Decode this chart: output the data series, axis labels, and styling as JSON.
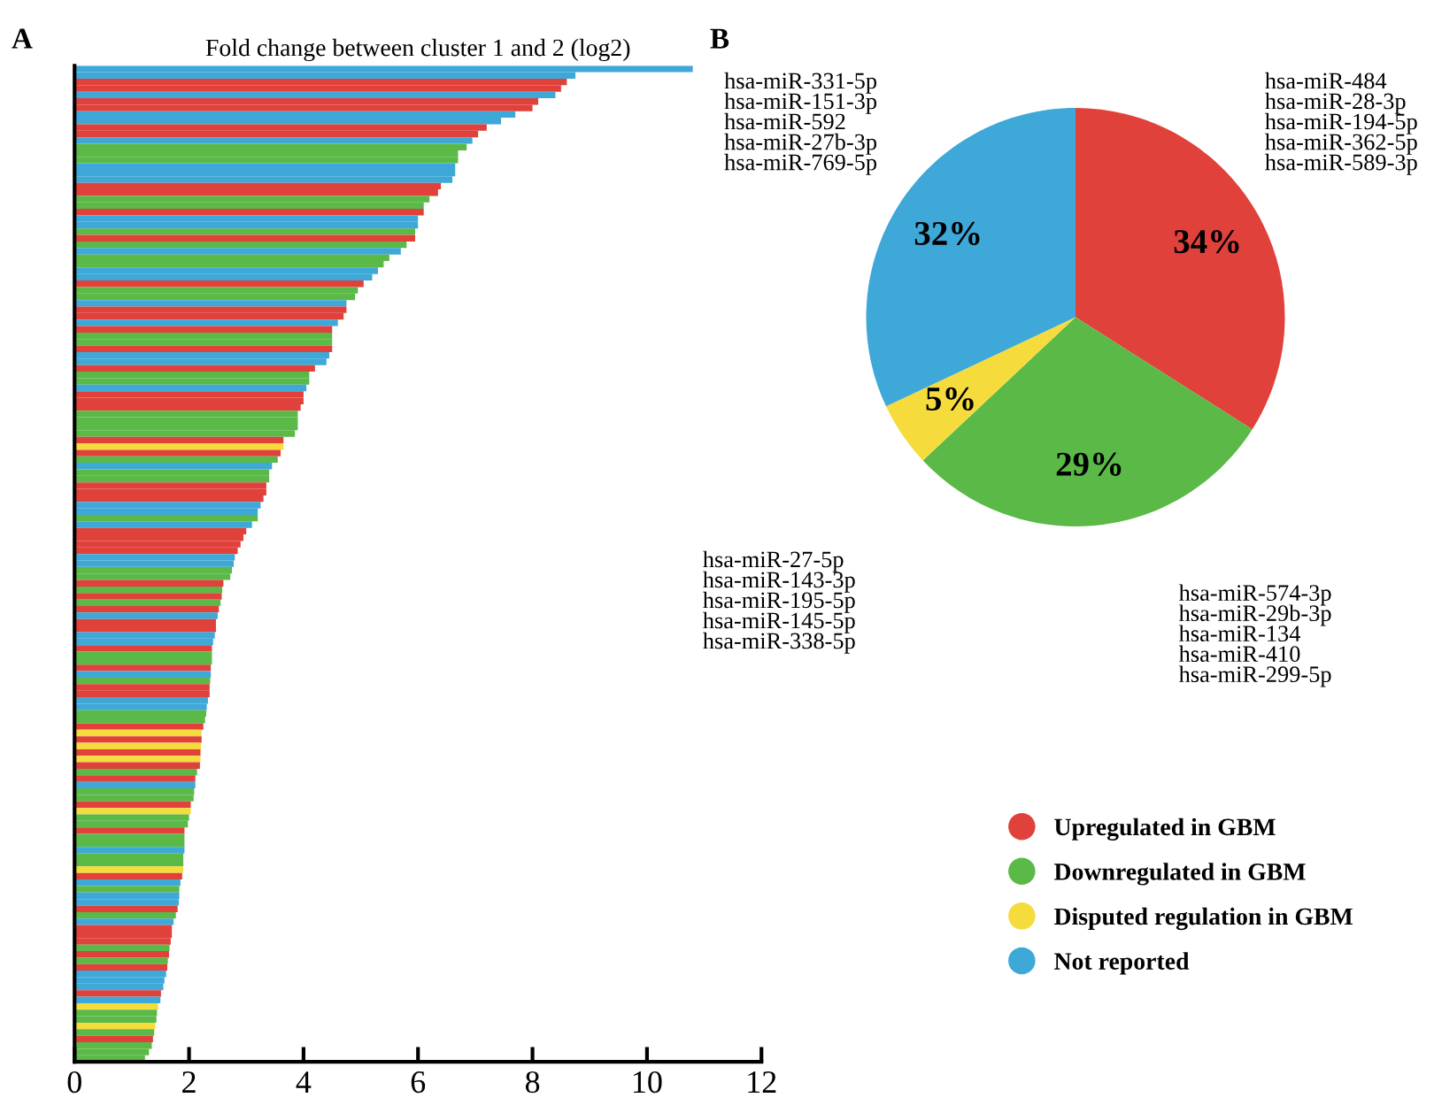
{
  "chart_data": [
    {
      "type": "bar",
      "orientation": "horizontal",
      "title": "Fold change between cluster 1 and 2 (log2)",
      "annotations": [
        "A"
      ],
      "xlim": [
        0,
        12
      ],
      "xticks": [
        0,
        2,
        4,
        6,
        8,
        10,
        12
      ],
      "categories": [
        null,
        null,
        null,
        null,
        null,
        null,
        null,
        null,
        null,
        null,
        null,
        null,
        null,
        null,
        null,
        null,
        null,
        null,
        null,
        null,
        null,
        null,
        null,
        null,
        null,
        null,
        null,
        null,
        null,
        null,
        null,
        null,
        null,
        null,
        null,
        null,
        null,
        null,
        null,
        null,
        null,
        null,
        null,
        null,
        null,
        null,
        null,
        null,
        null,
        null,
        null,
        null,
        null,
        null,
        null,
        null,
        null,
        null,
        null,
        null,
        null,
        null,
        null,
        null,
        null,
        null,
        null,
        null,
        null,
        null,
        null,
        null,
        null,
        null,
        null,
        null,
        null,
        null,
        null,
        null,
        null,
        null,
        null,
        null,
        null,
        null,
        null,
        null,
        null,
        null,
        null,
        null,
        null,
        null,
        null,
        null,
        null,
        null,
        null,
        null,
        null,
        null,
        null,
        null,
        null,
        null,
        null,
        null,
        null,
        null,
        null,
        null,
        null,
        null,
        null,
        null,
        null,
        null,
        null,
        null,
        null,
        null,
        null,
        null,
        null,
        null,
        null,
        null,
        null,
        null,
        null,
        null,
        null,
        null,
        null,
        null,
        null,
        null,
        null,
        null,
        null,
        null,
        null,
        null,
        null,
        null,
        null,
        null,
        null,
        null,
        null,
        null,
        null
      ],
      "values": [
        10.8,
        8.75,
        8.6,
        8.5,
        8.4,
        8.1,
        8.0,
        7.7,
        7.45,
        7.2,
        7.05,
        6.95,
        6.85,
        6.7,
        6.7,
        6.65,
        6.65,
        6.6,
        6.4,
        6.35,
        6.2,
        6.1,
        6.1,
        6.0,
        6.0,
        5.95,
        5.95,
        5.8,
        5.7,
        5.5,
        5.4,
        5.3,
        5.2,
        5.05,
        4.95,
        4.9,
        4.75,
        4.75,
        4.7,
        4.6,
        4.5,
        4.5,
        4.5,
        4.5,
        4.45,
        4.4,
        4.2,
        4.1,
        4.1,
        4.05,
        4.0,
        4.0,
        3.95,
        3.9,
        3.9,
        3.9,
        3.85,
        3.65,
        3.65,
        3.6,
        3.55,
        3.45,
        3.4,
        3.4,
        3.35,
        3.35,
        3.3,
        3.25,
        3.2,
        3.2,
        3.1,
        3.0,
        2.95,
        2.9,
        2.85,
        2.8,
        2.78,
        2.75,
        2.72,
        2.6,
        2.58,
        2.57,
        2.55,
        2.52,
        2.5,
        2.47,
        2.47,
        2.45,
        2.42,
        2.4,
        2.4,
        2.4,
        2.38,
        2.38,
        2.37,
        2.36,
        2.36,
        2.33,
        2.31,
        2.3,
        2.28,
        2.25,
        2.22,
        2.22,
        2.21,
        2.2,
        2.2,
        2.19,
        2.14,
        2.11,
        2.11,
        2.09,
        2.08,
        2.03,
        2.03,
        2.0,
        1.98,
        1.92,
        1.92,
        1.92,
        1.92,
        1.9,
        1.9,
        1.9,
        1.88,
        1.85,
        1.83,
        1.83,
        1.82,
        1.8,
        1.77,
        1.73,
        1.7,
        1.7,
        1.68,
        1.66,
        1.65,
        1.63,
        1.62,
        1.6,
        1.57,
        1.55,
        1.51,
        1.5,
        1.46,
        1.44,
        1.43,
        1.41,
        1.39,
        1.37,
        1.35,
        1.3,
        1.23
      ],
      "colors": [
        "#3ea8d8",
        "#3ea8d8",
        "#e0413a",
        "#e0413a",
        "#3ea8d8",
        "#e0413a",
        "#e0413a",
        "#3ea8d8",
        "#3ea8d8",
        "#e0413a",
        "#e0413a",
        "#3ea8d8",
        "#5ab947",
        "#5ab947",
        "#5ab947",
        "#3ea8d8",
        "#3ea8d8",
        "#3ea8d8",
        "#e0413a",
        "#e0413a",
        "#5ab947",
        "#5ab947",
        "#e0413a",
        "#3ea8d8",
        "#3ea8d8",
        "#5ab947",
        "#e0413a",
        "#5ab947",
        "#3ea8d8",
        "#5ab947",
        "#5ab947",
        "#3ea8d8",
        "#3ea8d8",
        "#e0413a",
        "#5ab947",
        "#5ab947",
        "#3ea8d8",
        "#e0413a",
        "#e0413a",
        "#3ea8d8",
        "#e0413a",
        "#5ab947",
        "#5ab947",
        "#e0413a",
        "#3ea8d8",
        "#3ea8d8",
        "#e0413a",
        "#5ab947",
        "#5ab947",
        "#3ea8d8",
        "#e0413a",
        "#e0413a",
        "#e0413a",
        "#5ab947",
        "#5ab947",
        "#5ab947",
        "#5ab947",
        "#e0413a",
        "#f5dc3c",
        "#e0413a",
        "#5ab947",
        "#3ea8d8",
        "#5ab947",
        "#5ab947",
        "#e0413a",
        "#e0413a",
        "#e0413a",
        "#3ea8d8",
        "#3ea8d8",
        "#5ab947",
        "#3ea8d8",
        "#e0413a",
        "#e0413a",
        "#e0413a",
        "#e0413a",
        "#3ea8d8",
        "#3ea8d8",
        "#5ab947",
        "#5ab947",
        "#e0413a",
        "#5ab947",
        "#e0413a",
        "#5ab947",
        "#e0413a",
        "#3ea8d8",
        "#e0413a",
        "#e0413a",
        "#3ea8d8",
        "#3ea8d8",
        "#e0413a",
        "#5ab947",
        "#5ab947",
        "#e0413a",
        "#3ea8d8",
        "#5ab947",
        "#e0413a",
        "#e0413a",
        "#3ea8d8",
        "#3ea8d8",
        "#5ab947",
        "#5ab947",
        "#e0413a",
        "#f5dc3c",
        "#e0413a",
        "#f5dc3c",
        "#e0413a",
        "#f5dc3c",
        "#e0413a",
        "#5ab947",
        "#e0413a",
        "#3ea8d8",
        "#5ab947",
        "#5ab947",
        "#e0413a",
        "#f5dc3c",
        "#5ab947",
        "#5ab947",
        "#e0413a",
        "#5ab947",
        "#5ab947",
        "#3ea8d8",
        "#5ab947",
        "#5ab947",
        "#f5dc3c",
        "#e0413a",
        "#3ea8d8",
        "#5ab947",
        "#3ea8d8",
        "#3ea8d8",
        "#e0413a",
        "#5ab947",
        "#3ea8d8",
        "#e0413a",
        "#e0413a",
        "#e0413a",
        "#5ab947",
        "#e0413a",
        "#5ab947",
        "#e0413a",
        "#3ea8d8",
        "#3ea8d8",
        "#3ea8d8",
        "#e0413a",
        "#3ea8d8",
        "#f5dc3c",
        "#5ab947",
        "#5ab947",
        "#f5dc3c",
        "#5ab947",
        "#e0413a",
        "#5ab947",
        "#5ab947",
        "#5ab947"
      ]
    },
    {
      "type": "pie",
      "categories": [
        "Upregulated in GBM",
        "Downregulated in GBM",
        "Disputed regulation in GBM",
        "Not reported"
      ],
      "values": [
        34,
        29,
        5,
        32
      ],
      "colors": [
        "#e0413a",
        "#5ab947",
        "#f5dc3c",
        "#3ea8d8"
      ],
      "value_labels": [
        "34%",
        "29%",
        "5%",
        "32%"
      ],
      "legend": "bottom",
      "annotations": [
        "B",
        "hsa-miR-484\nhsa-miR-28-3p\nhsa-miR-194-5p\nhsa-miR-362-5p\nhsa-miR-589-3p",
        "hsa-miR-574-3p\nhsa-miR-29b-3p\nhsa-miR-134\nhsa-miR-410\nhsa-miR-299-5p",
        "hsa-miR-27-5p\nhsa-miR-143-3p\nhsa-miR-195-5p\nhsa-miR-145-5p\nhsa-miR-338-5p",
        "hsa-miR-331-5p\nhsa-miR-151-3p\nhsa-miR-592\nhsa-miR-27b-3p\nhsa-miR-769-5p"
      ]
    }
  ]
}
